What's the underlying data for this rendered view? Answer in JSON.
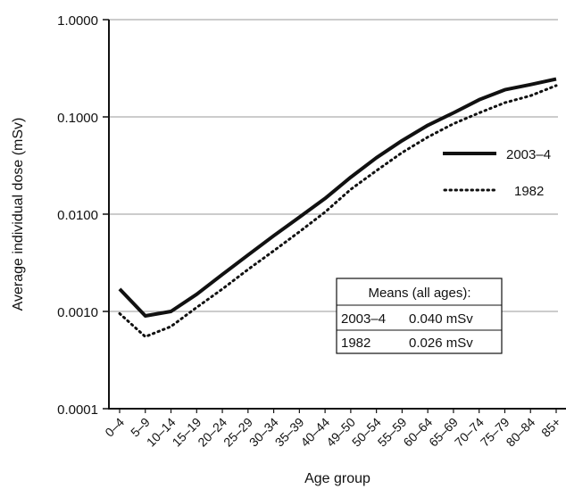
{
  "chart_data": {
    "type": "line",
    "title": "",
    "xlabel": "Age group",
    "ylabel": "Average  individual dose  (mSv)",
    "yscale": "log",
    "ylim": [
      0.0001,
      1.0
    ],
    "yticks": [
      "0.0001",
      "0.0010",
      "0.0100",
      "0.1000",
      "1.0000"
    ],
    "grid": "horizontal",
    "legend_position": "right",
    "categories": [
      "0–4",
      "5–9",
      "10–14",
      "15–19",
      "20–24",
      "25–29",
      "30–34",
      "35–39",
      "40–44",
      "49–50",
      "50–54",
      "55–59",
      "60–64",
      "65–69",
      "70–74",
      "75–79",
      "80–84",
      "85+"
    ],
    "series": [
      {
        "name": "2003–4",
        "style": "solid",
        "color": "#111111",
        "values": [
          0.0017,
          0.0009,
          0.001,
          0.0015,
          0.0024,
          0.0038,
          0.006,
          0.0093,
          0.0145,
          0.024,
          0.038,
          0.057,
          0.082,
          0.11,
          0.15,
          0.19,
          0.215,
          0.245
        ]
      },
      {
        "name": "1982",
        "style": "dotted",
        "color": "#111111",
        "values": [
          0.00095,
          0.00055,
          0.0007,
          0.0011,
          0.0017,
          0.0027,
          0.0042,
          0.0066,
          0.0105,
          0.018,
          0.028,
          0.043,
          0.062,
          0.085,
          0.11,
          0.14,
          0.165,
          0.21
        ]
      }
    ],
    "annotation": {
      "title": "Means (all ages):",
      "rows": [
        {
          "label": "2003–4",
          "value": "0.040 mSv"
        },
        {
          "label": "1982",
          "value": "0.026 mSv"
        }
      ]
    }
  }
}
